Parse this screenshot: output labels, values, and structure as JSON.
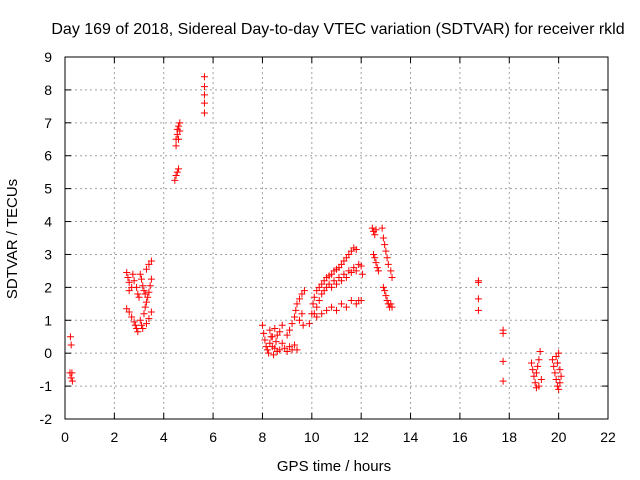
{
  "chart_data": {
    "type": "scatter",
    "title": "Day 169 of 2018, Sidereal Day-to-day VTEC variation (SDTVAR) for receiver rkld",
    "xlabel": "GPS time / hours",
    "ylabel": "SDTVAR / TECUs",
    "xlim": [
      0,
      22
    ],
    "ylim": [
      -2,
      9
    ],
    "xticks": [
      "0",
      "2",
      "4",
      "6",
      "8",
      "10",
      "12",
      "14",
      "16",
      "18",
      "20",
      "22"
    ],
    "yticks": [
      "-2",
      "-1",
      "0",
      "1",
      "2",
      "3",
      "4",
      "5",
      "6",
      "7",
      "8",
      "9"
    ],
    "grid": true,
    "marker": "+",
    "marker_color": "#ff0000",
    "series": [
      {
        "name": "SDTVAR",
        "points": [
          [
            0.22,
            0.5
          ],
          [
            0.25,
            0.25
          ],
          [
            0.2,
            -0.6
          ],
          [
            0.25,
            -0.75
          ],
          [
            0.28,
            -0.6
          ],
          [
            0.3,
            -0.85
          ],
          [
            2.5,
            2.45
          ],
          [
            2.55,
            2.3
          ],
          [
            2.6,
            2.15
          ],
          [
            2.7,
            2.0
          ],
          [
            2.6,
            1.9
          ],
          [
            2.75,
            2.4
          ],
          [
            2.8,
            2.2
          ],
          [
            2.9,
            2.0
          ],
          [
            2.95,
            1.8
          ],
          [
            3.0,
            1.7
          ],
          [
            3.05,
            2.4
          ],
          [
            3.1,
            2.25
          ],
          [
            3.15,
            2.05
          ],
          [
            3.2,
            1.9
          ],
          [
            3.25,
            1.8
          ],
          [
            3.3,
            2.55
          ],
          [
            3.4,
            2.7
          ],
          [
            3.5,
            2.8
          ],
          [
            2.5,
            1.35
          ],
          [
            2.6,
            1.25
          ],
          [
            2.7,
            1.1
          ],
          [
            2.8,
            0.95
          ],
          [
            2.85,
            0.85
          ],
          [
            2.9,
            0.75
          ],
          [
            2.95,
            0.65
          ],
          [
            3.05,
            1.0
          ],
          [
            3.1,
            0.85
          ],
          [
            3.15,
            0.75
          ],
          [
            3.2,
            1.2
          ],
          [
            3.25,
            1.4
          ],
          [
            3.3,
            1.55
          ],
          [
            3.35,
            1.7
          ],
          [
            3.4,
            1.85
          ],
          [
            3.45,
            2.05
          ],
          [
            3.5,
            2.25
          ],
          [
            3.3,
            0.9
          ],
          [
            3.4,
            1.05
          ],
          [
            3.5,
            1.25
          ],
          [
            4.45,
            5.25
          ],
          [
            4.5,
            5.4
          ],
          [
            4.55,
            5.5
          ],
          [
            4.6,
            5.6
          ],
          [
            4.5,
            6.3
          ],
          [
            4.5,
            6.5
          ],
          [
            4.55,
            6.65
          ],
          [
            4.55,
            6.8
          ],
          [
            4.6,
            6.5
          ],
          [
            4.6,
            6.9
          ],
          [
            4.65,
            6.75
          ],
          [
            4.65,
            7.0
          ],
          [
            5.65,
            8.4
          ],
          [
            5.65,
            8.1
          ],
          [
            5.65,
            7.85
          ],
          [
            5.65,
            7.6
          ],
          [
            5.65,
            7.3
          ],
          [
            8.0,
            0.85
          ],
          [
            8.05,
            0.6
          ],
          [
            8.1,
            0.4
          ],
          [
            8.15,
            0.2
          ],
          [
            8.2,
            0.1
          ],
          [
            8.25,
            0.0
          ],
          [
            8.3,
            0.3
          ],
          [
            8.35,
            0.5
          ],
          [
            8.4,
            0.2
          ],
          [
            8.45,
            -0.05
          ],
          [
            8.5,
            0.15
          ],
          [
            8.55,
            0.35
          ],
          [
            8.6,
            0.05
          ],
          [
            8.7,
            0.1
          ],
          [
            8.8,
            0.3
          ],
          [
            8.9,
            0.15
          ],
          [
            9.0,
            0.05
          ],
          [
            9.1,
            0.2
          ],
          [
            9.2,
            0.1
          ],
          [
            9.3,
            0.25
          ],
          [
            9.4,
            0.1
          ],
          [
            8.3,
            0.7
          ],
          [
            8.4,
            0.5
          ],
          [
            8.5,
            0.75
          ],
          [
            8.6,
            0.55
          ],
          [
            8.7,
            0.65
          ],
          [
            8.8,
            0.85
          ],
          [
            9.0,
            0.55
          ],
          [
            9.1,
            0.7
          ],
          [
            9.2,
            0.9
          ],
          [
            9.3,
            1.1
          ],
          [
            9.35,
            1.3
          ],
          [
            9.4,
            1.5
          ],
          [
            9.5,
            1.65
          ],
          [
            9.6,
            1.8
          ],
          [
            9.7,
            1.9
          ],
          [
            9.5,
            1.0
          ],
          [
            9.6,
            1.2
          ],
          [
            9.65,
            0.85
          ],
          [
            9.9,
            0.9
          ],
          [
            10.0,
            1.2
          ],
          [
            10.05,
            1.5
          ],
          [
            10.1,
            1.7
          ],
          [
            10.2,
            1.9
          ],
          [
            10.3,
            2.0
          ],
          [
            10.4,
            2.1
          ],
          [
            10.5,
            2.2
          ],
          [
            10.6,
            2.3
          ],
          [
            10.7,
            2.35
          ],
          [
            10.8,
            2.4
          ],
          [
            10.9,
            2.5
          ],
          [
            11.0,
            2.55
          ],
          [
            11.1,
            2.6
          ],
          [
            11.2,
            2.7
          ],
          [
            11.3,
            2.8
          ],
          [
            11.4,
            2.9
          ],
          [
            11.5,
            3.0
          ],
          [
            11.6,
            3.1
          ],
          [
            11.7,
            3.2
          ],
          [
            11.8,
            3.15
          ],
          [
            10.1,
            1.2
          ],
          [
            10.2,
            1.4
          ],
          [
            10.3,
            1.6
          ],
          [
            10.4,
            1.8
          ],
          [
            10.5,
            1.9
          ],
          [
            10.6,
            2.0
          ],
          [
            10.7,
            2.1
          ],
          [
            10.8,
            2.0
          ],
          [
            10.9,
            2.2
          ],
          [
            11.0,
            2.1
          ],
          [
            11.1,
            2.3
          ],
          [
            11.2,
            2.2
          ],
          [
            11.3,
            2.4
          ],
          [
            11.4,
            2.3
          ],
          [
            11.5,
            2.5
          ],
          [
            11.6,
            2.45
          ],
          [
            11.7,
            2.6
          ],
          [
            11.8,
            2.5
          ],
          [
            11.9,
            2.7
          ],
          [
            12.0,
            2.65
          ],
          [
            12.05,
            2.4
          ],
          [
            10.2,
            1.1
          ],
          [
            10.4,
            1.2
          ],
          [
            10.6,
            1.3
          ],
          [
            10.8,
            1.4
          ],
          [
            11.0,
            1.3
          ],
          [
            11.2,
            1.5
          ],
          [
            11.4,
            1.4
          ],
          [
            11.6,
            1.6
          ],
          [
            11.8,
            1.5
          ],
          [
            11.9,
            1.6
          ],
          [
            12.0,
            1.6
          ],
          [
            12.45,
            3.8
          ],
          [
            12.5,
            3.7
          ],
          [
            12.55,
            3.6
          ],
          [
            12.6,
            3.75
          ],
          [
            12.5,
            3.0
          ],
          [
            12.55,
            2.9
          ],
          [
            12.6,
            2.75
          ],
          [
            12.65,
            2.6
          ],
          [
            12.7,
            2.5
          ],
          [
            12.85,
            3.8
          ],
          [
            12.9,
            3.5
          ],
          [
            12.95,
            3.3
          ],
          [
            13.0,
            3.1
          ],
          [
            13.05,
            2.9
          ],
          [
            13.1,
            2.7
          ],
          [
            13.2,
            2.5
          ],
          [
            13.25,
            2.3
          ],
          [
            12.9,
            2.0
          ],
          [
            12.95,
            1.9
          ],
          [
            13.0,
            1.75
          ],
          [
            13.05,
            1.6
          ],
          [
            13.1,
            1.5
          ],
          [
            13.15,
            1.4
          ],
          [
            13.2,
            1.5
          ],
          [
            13.25,
            1.4
          ],
          [
            16.75,
            2.2
          ],
          [
            16.75,
            2.15
          ],
          [
            16.75,
            1.65
          ],
          [
            16.75,
            1.3
          ],
          [
            17.75,
            0.7
          ],
          [
            17.75,
            0.6
          ],
          [
            17.75,
            -0.25
          ],
          [
            17.75,
            -0.85
          ],
          [
            18.9,
            -0.3
          ],
          [
            18.95,
            -0.5
          ],
          [
            19.0,
            -0.7
          ],
          [
            19.05,
            -0.9
          ],
          [
            19.1,
            -0.6
          ],
          [
            19.15,
            -0.4
          ],
          [
            19.2,
            -0.2
          ],
          [
            19.25,
            0.05
          ],
          [
            19.3,
            -0.8
          ],
          [
            19.2,
            -1.0
          ],
          [
            19.1,
            -1.05
          ],
          [
            19.75,
            -0.2
          ],
          [
            19.8,
            -0.4
          ],
          [
            19.85,
            -0.6
          ],
          [
            19.9,
            -0.8
          ],
          [
            19.95,
            -1.0
          ],
          [
            20.0,
            -1.1
          ],
          [
            20.05,
            -0.9
          ],
          [
            20.1,
            -0.7
          ],
          [
            20.05,
            -0.5
          ],
          [
            19.95,
            -0.3
          ],
          [
            19.9,
            -0.1
          ],
          [
            20.0,
            0.0
          ]
        ]
      }
    ]
  }
}
